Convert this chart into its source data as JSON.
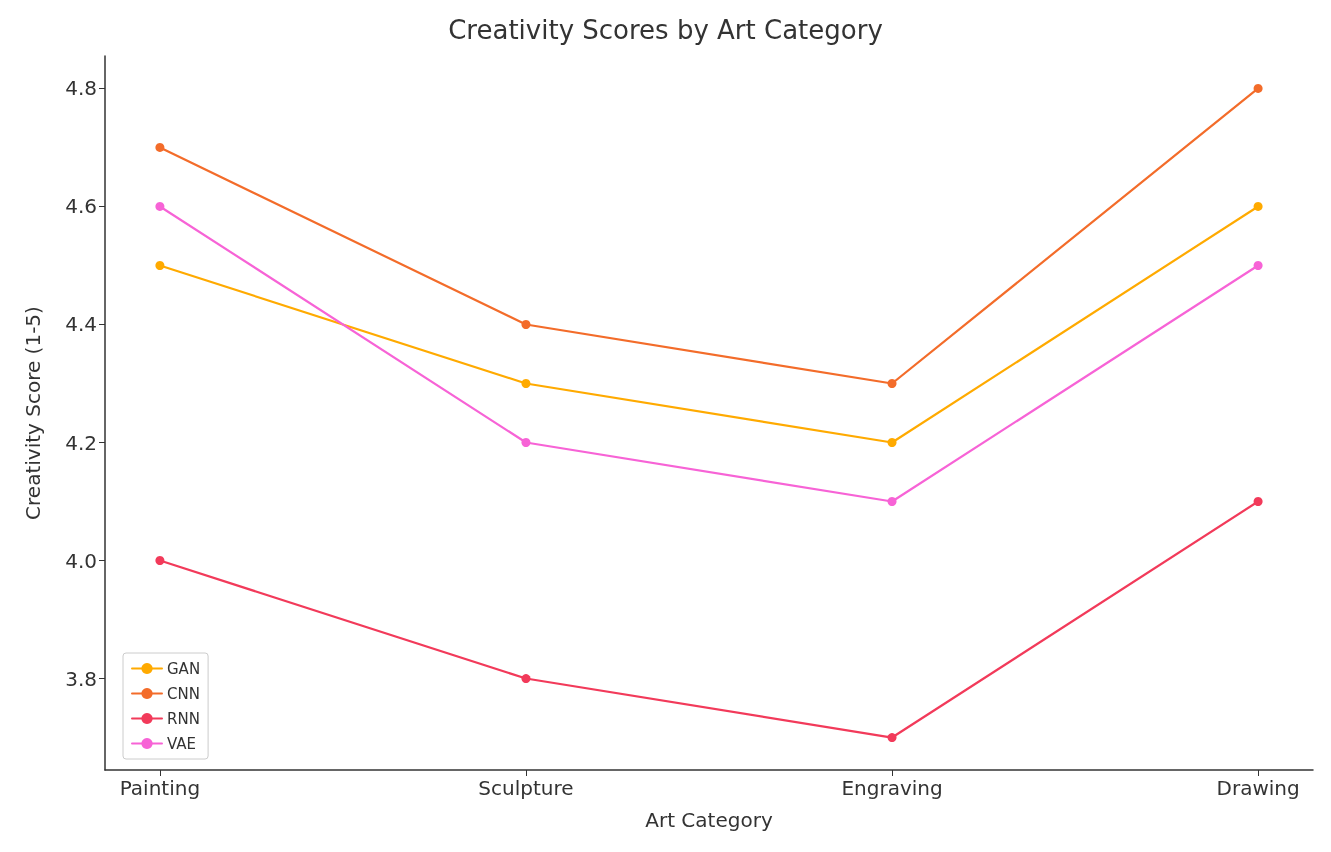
{
  "chart_data": {
    "type": "line",
    "title": "Creativity Scores by Art Category",
    "xlabel": "Art Category",
    "ylabel": "Creativity Score (1-5)",
    "categories": [
      "Painting",
      "Sculpture",
      "Engraving",
      "Drawing"
    ],
    "series": [
      {
        "name": "GAN",
        "color": "#ffaa00",
        "values": [
          4.5,
          4.3,
          4.2,
          4.6
        ]
      },
      {
        "name": "CNN",
        "color": "#f36c2a",
        "values": [
          4.7,
          4.4,
          4.3,
          4.8
        ]
      },
      {
        "name": "RNN",
        "color": "#f23a5a",
        "values": [
          4.0,
          3.8,
          3.7,
          4.1
        ]
      },
      {
        "name": "VAE",
        "color": "#f763d6",
        "values": [
          4.6,
          4.2,
          4.1,
          4.5
        ]
      }
    ],
    "ylim": [
      3.645,
      4.855
    ],
    "yticks": [
      3.8,
      {
        "value": 4.0,
        "label": "4.0"
      },
      4.2,
      4.4,
      4.6,
      4.8
    ],
    "grid": false,
    "legend": "bottom left",
    "marker": "circle",
    "line_style": "solid"
  }
}
